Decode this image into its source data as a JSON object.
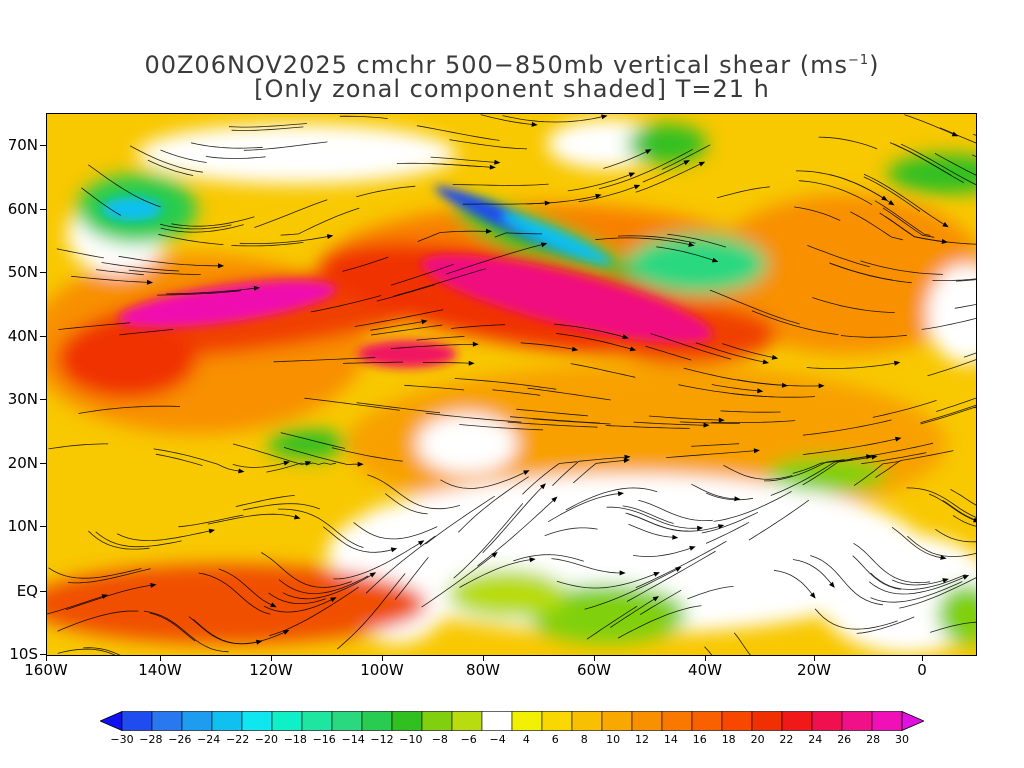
{
  "title": {
    "line1_prefix": "00Z06NOV2025 cmchr 500−850mb vertical shear (ms",
    "line1_sup": "−1",
    "line1_suffix": ")",
    "line2": "[Only zonal component shaded] T=21 h"
  },
  "lat_labels": [
    "70N",
    "60N",
    "50N",
    "40N",
    "30N",
    "20N",
    "10N",
    "EQ",
    "10S"
  ],
  "lon_labels": [
    "160W",
    "140W",
    "120W",
    "100W",
    "80W",
    "60W",
    "40W",
    "20W",
    "0"
  ],
  "colorbar": {
    "labels": [
      "−30",
      "−28",
      "−26",
      "−24",
      "−22",
      "−20",
      "−18",
      "−16",
      "−14",
      "−12",
      "−10",
      "−8",
      "−6",
      "−4",
      "4",
      "6",
      "8",
      "10",
      "12",
      "14",
      "16",
      "18",
      "20",
      "22",
      "24",
      "26",
      "28",
      "30"
    ],
    "colors": [
      "#1010f0",
      "#1e4cf0",
      "#2a78f0",
      "#1e9cf0",
      "#10c0f0",
      "#10e6f0",
      "#10f0c8",
      "#1ee6a0",
      "#2ad880",
      "#28cc50",
      "#30c020",
      "#80d010",
      "#b8dc10",
      "#ffffff",
      "#f0f000",
      "#f8d800",
      "#f8c000",
      "#f8a800",
      "#f89000",
      "#f87800",
      "#f86000",
      "#f84800",
      "#f03000",
      "#f01818",
      "#f01050",
      "#f01088",
      "#f010b8",
      "#e010e0"
    ]
  }
}
